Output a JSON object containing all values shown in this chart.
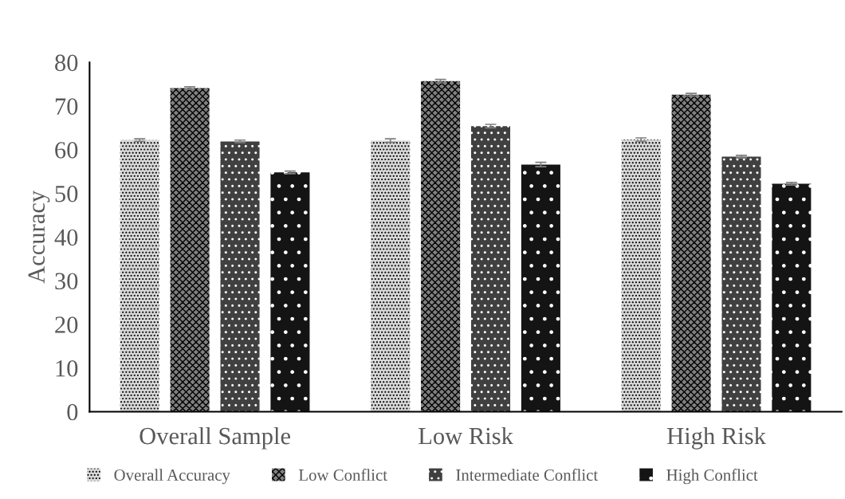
{
  "chart_data": {
    "type": "bar",
    "ylabel": "Accuracy",
    "categories": [
      "Overall Sample",
      "Low Risk",
      "High Risk"
    ],
    "series": [
      {
        "name": "Overall Accuracy",
        "color": "#d9d9d9",
        "values": [
          62.2,
          62.1,
          62.3
        ],
        "errors": [
          0.3,
          0.4,
          0.4
        ]
      },
      {
        "name": "Low Conflict",
        "color": "#808080",
        "values": [
          74.1,
          75.7,
          72.6
        ],
        "errors": [
          0.3,
          0.4,
          0.3
        ]
      },
      {
        "name": "Intermediate Conflict",
        "color": "#404040",
        "values": [
          61.9,
          65.4,
          58.4
        ],
        "errors": [
          0.3,
          0.4,
          0.3
        ]
      },
      {
        "name": "High Conflict",
        "color": "#141414",
        "values": [
          54.8,
          56.6,
          52.2
        ],
        "errors": [
          0.3,
          0.5,
          0.3
        ]
      }
    ],
    "ylim": [
      0,
      80
    ],
    "yticks": [
      0,
      10,
      20,
      30,
      40,
      50,
      60,
      70,
      80
    ],
    "grid": false,
    "legend": "bottom"
  }
}
